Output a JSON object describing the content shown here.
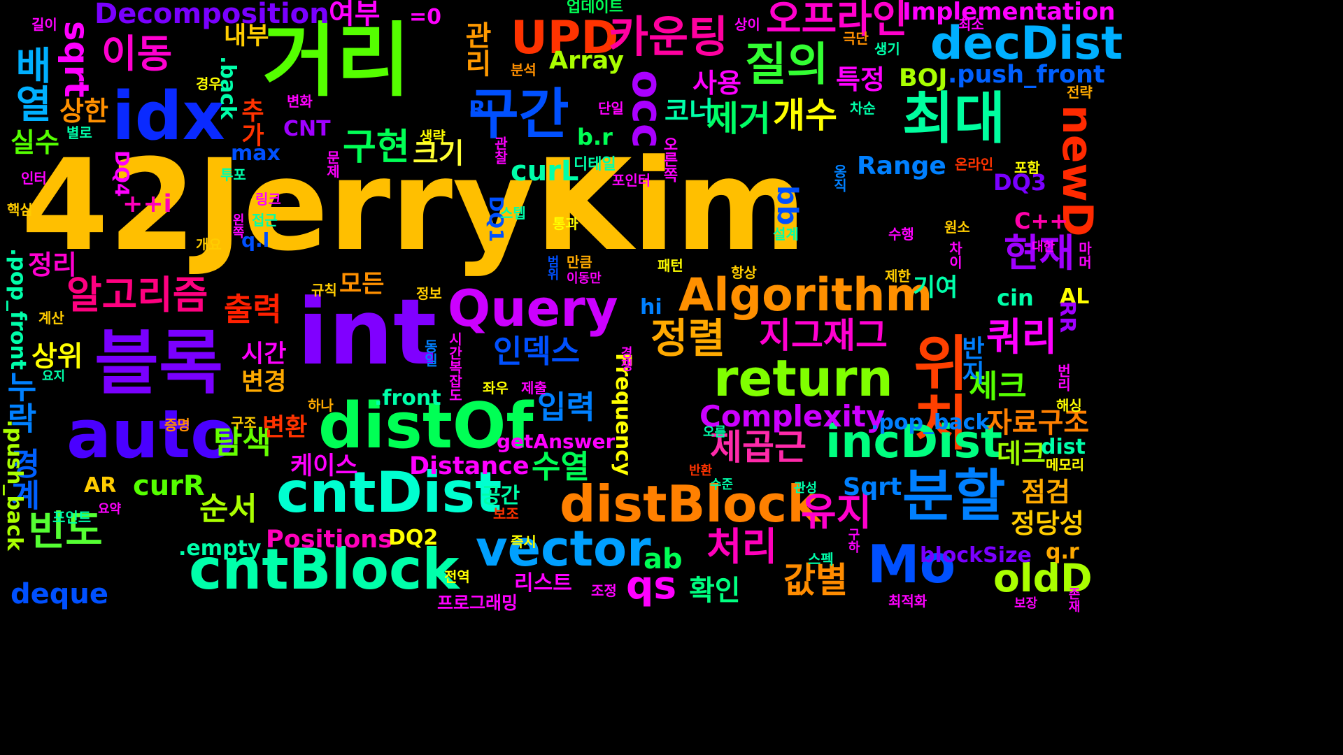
{
  "words": [
    {
      "text": "42JerryKim",
      "color": "#ffbf00"
    },
    {
      "text": "int",
      "color": "#8000ff"
    },
    {
      "text": "거리",
      "color": "#55ff00"
    },
    {
      "text": "블록",
      "color": "#7a00ff"
    },
    {
      "text": "위치",
      "color": "#ff4000"
    },
    {
      "text": "idx",
      "color": "#0a2aff"
    },
    {
      "text": "auto",
      "color": "#4a00ff"
    },
    {
      "text": "distOf",
      "color": "#00ff55"
    },
    {
      "text": "최대",
      "color": "#00ff9f"
    },
    {
      "text": "분할",
      "color": "#0080ff"
    },
    {
      "text": "구간",
      "color": "#0050ff"
    },
    {
      "text": "cntDist",
      "color": "#00ffd0"
    },
    {
      "text": "cntBlock",
      "color": "#00ffaa"
    },
    {
      "text": "vector",
      "color": "#00a0ff"
    },
    {
      "text": "distBlock",
      "color": "#ff8000"
    },
    {
      "text": "Mo",
      "color": "#0050ff"
    },
    {
      "text": "Query",
      "color": "#cc00ff"
    },
    {
      "text": "return",
      "color": "#80ff00"
    },
    {
      "text": "incDist",
      "color": "#00ff80"
    },
    {
      "text": "Algorithm",
      "color": "#ff9000"
    },
    {
      "text": "decDist",
      "color": "#00b0ff"
    },
    {
      "text": "UPD",
      "color": "#ff3300"
    },
    {
      "text": "질의",
      "color": "#33ff33"
    },
    {
      "text": "카운팅",
      "color": "#ff00a0"
    },
    {
      "text": "오프라인",
      "color": "#ff00cc"
    },
    {
      "text": "occ",
      "color": "#aa00ff"
    },
    {
      "text": "newD",
      "color": "#ff2a00"
    },
    {
      "text": "알고리즘",
      "color": "#ff0080"
    },
    {
      "text": "이동",
      "color": "#ff00d0"
    },
    {
      "text": "sqrt",
      "color": "#ff00ff"
    },
    {
      "text": "배열",
      "color": "#00b0ff"
    },
    {
      "text": "정렬",
      "color": "#ffaa00"
    },
    {
      "text": "개수",
      "color": "#ffff00"
    },
    {
      "text": "제거",
      "color": "#00ff66"
    },
    {
      "text": "구현",
      "color": "#00ff55"
    },
    {
      "text": "크기",
      "color": "#ffff33"
    },
    {
      "text": "쿼리",
      "color": "#ff00ff"
    },
    {
      "text": "현재",
      "color": "#a000ff"
    },
    {
      "text": "지그재그",
      "color": "#ff00d0"
    },
    {
      "text": "출력",
      "color": "#ff2000"
    },
    {
      "text": "인덱스",
      "color": "#0050ff"
    },
    {
      "text": "입력",
      "color": "#0080ff"
    },
    {
      "text": "처리",
      "color": "#ff00bb"
    },
    {
      "text": "유지",
      "color": "#ff00cc"
    },
    {
      "text": "값별",
      "color": "#ff8c00"
    },
    {
      "text": "oldD",
      "color": "#aaff00"
    },
    {
      "text": "qs",
      "color": "#ff00ff"
    },
    {
      "text": "ab",
      "color": "#00ff55"
    },
    {
      "text": "확인",
      "color": "#00ff80"
    },
    {
      "text": "체크",
      "color": "#55ff00"
    },
    {
      "text": "제곱근",
      "color": "#ff2aaa"
    },
    {
      "text": "Complexity",
      "color": "#cc00ff"
    },
    {
      "text": "자료구조",
      "color": "#ff8000"
    },
    {
      "text": "데크",
      "color": "#a0ff00"
    },
    {
      "text": "점검",
      "color": "#ffaa00"
    },
    {
      "text": "정당성",
      "color": "#ffcc00"
    },
    {
      "text": "수열",
      "color": "#00ff55"
    },
    {
      "text": "탐색",
      "color": "#66ff00"
    },
    {
      "text": "순서",
      "color": "#aaff00"
    },
    {
      "text": "빈도",
      "color": "#55ff33"
    },
    {
      "text": "경계",
      "color": "#0060ff"
    },
    {
      "text": "누락",
      "color": "#0080ff"
    },
    {
      "text": "정리",
      "color": "#ff00d0"
    },
    {
      "text": "상위",
      "color": "#ffff00"
    },
    {
      "text": "실수",
      "color": "#55ff00"
    },
    {
      "text": "상한",
      "color": "#ff9000"
    },
    {
      "text": "Decomposition",
      "color": "#7a00ff"
    },
    {
      "text": "여부",
      "color": "#ff00ff"
    },
    {
      "text": "=0",
      "color": "#ff00ff"
    },
    {
      "text": "Implementation",
      "color": "#ff00ff"
    },
    {
      "text": "관리",
      "color": "#ff9900"
    },
    {
      "text": "특정",
      "color": "#ff00ff"
    },
    {
      "text": "BOJ",
      "color": "#aaff00"
    },
    {
      "text": ".push_front",
      "color": "#0060ff"
    },
    {
      "text": "사용",
      "color": "#ff00ff"
    },
    {
      "text": "코너",
      "color": "#00ffaa"
    },
    {
      "text": "RL",
      "color": "#0050ff"
    },
    {
      "text": "curL",
      "color": "#00ffaa"
    },
    {
      "text": "Range",
      "color": "#0080ff"
    },
    {
      "text": "DQ3",
      "color": "#7a00ff"
    },
    {
      "text": "bb",
      "color": "#0050ff"
    },
    {
      "text": "C++",
      "color": "#ff00aa"
    },
    {
      "text": "AL",
      "color": "#ffff00"
    },
    {
      "text": "RR",
      "color": "#a000ff"
    },
    {
      "text": "cin",
      "color": "#00ffaa"
    },
    {
      "text": "기여",
      "color": "#00ffaa"
    },
    {
      "text": "반지",
      "color": "#0080ff"
    },
    {
      "text": "b.r",
      "color": "#00ff55"
    },
    {
      "text": "Array",
      "color": "#aaff00"
    },
    {
      "text": "내부",
      "color": "#ffcc00"
    },
    {
      "text": "max",
      "color": "#0050ff"
    },
    {
      "text": "CNT",
      "color": "#a000ff"
    },
    {
      "text": "추가",
      "color": "#ff3300"
    },
    {
      "text": ".back",
      "color": "#00ffaa"
    },
    {
      "text": "DQ4",
      "color": "#ff00ff"
    },
    {
      "text": "++i",
      "color": "#ff00bb"
    },
    {
      "text": "q.l",
      "color": "#0050ff"
    },
    {
      "text": ".pop_front",
      "color": "#00ffaa"
    },
    {
      "text": ".pop_back",
      "color": "#0080ff"
    },
    {
      "text": "모든",
      "color": "#ff9000"
    },
    {
      "text": "시간",
      "color": "#ff00ff"
    },
    {
      "text": "변경",
      "color": "#ffaa00"
    },
    {
      "text": "변환",
      "color": "#ff3300"
    },
    {
      "text": "케이스",
      "color": "#ff00ff"
    },
    {
      "text": "Distance",
      "color": "#ff00ff"
    },
    {
      "text": "Positions",
      "color": "#ff00bb"
    },
    {
      "text": ".front",
      "color": "#00ffaa"
    },
    {
      "text": "getAnswer",
      "color": "#ff00ff"
    },
    {
      "text": "Frequency",
      "color": "#ffff00"
    },
    {
      "text": "Sqrt",
      "color": "#0080ff"
    },
    {
      "text": "dist",
      "color": "#00ffaa"
    },
    {
      "text": "blockSize",
      "color": "#7a00ff"
    },
    {
      "text": "q.r",
      "color": "#ffaa00"
    },
    {
      "text": "hi",
      "color": "#0080ff"
    },
    {
      "text": "AR",
      "color": "#ffcc00"
    },
    {
      "text": "curR",
      "color": "#55ff00"
    },
    {
      "text": "deque",
      "color": "#0050ff"
    },
    {
      "text": ".empty",
      "color": "#00ffaa"
    },
    {
      "text": "DQ2",
      "color": "#ffff00"
    },
    {
      "text": ".push_back",
      "color": "#aaff00"
    },
    {
      "text": "DQ1",
      "color": "#0050ff"
    },
    {
      "text": "공간",
      "color": "#00ffaa"
    },
    {
      "text": "리스트",
      "color": "#ff00ff"
    },
    {
      "text": "프로그래밍",
      "color": "#ff00ff"
    },
    {
      "text": "업데이트",
      "color": "#00ff55"
    },
    {
      "text": "길이",
      "color": "#ff00ff"
    },
    {
      "text": "상이",
      "color": "#ff00ff"
    },
    {
      "text": "최소",
      "color": "#ff00ff"
    },
    {
      "text": "극단",
      "color": "#ff9000"
    },
    {
      "text": "생기",
      "color": "#00ffaa"
    },
    {
      "text": "분석",
      "color": "#ff9000"
    },
    {
      "text": "경우",
      "color": "#ffff00"
    },
    {
      "text": "변화",
      "color": "#ff00ff"
    },
    {
      "text": "단일",
      "color": "#ff00ff"
    },
    {
      "text": "차순",
      "color": "#00ffaa"
    },
    {
      "text": "전략",
      "color": "#ffaa00"
    },
    {
      "text": "별로",
      "color": "#00ffaa"
    },
    {
      "text": "생략",
      "color": "#ffff00"
    },
    {
      "text": "관찰",
      "color": "#ff00ff"
    },
    {
      "text": "오른쪽",
      "color": "#ff00ff"
    },
    {
      "text": "인터",
      "color": "#ff00ff"
    },
    {
      "text": "투포",
      "color": "#00ffaa"
    },
    {
      "text": "문제",
      "color": "#ff00ff"
    },
    {
      "text": "디테일",
      "color": "#00ffaa"
    },
    {
      "text": "포인터",
      "color": "#ff00ff"
    },
    {
      "text": "온라인",
      "color": "#ff3300"
    },
    {
      "text": "포함",
      "color": "#ffff00"
    },
    {
      "text": "옹직",
      "color": "#0080ff"
    },
    {
      "text": "핵심",
      "color": "#ffcc00"
    },
    {
      "text": "링크",
      "color": "#ff00ff"
    },
    {
      "text": "스텝",
      "color": "#00ffaa"
    },
    {
      "text": "왼쪽",
      "color": "#ff00ff"
    },
    {
      "text": "접근",
      "color": "#00ffaa"
    },
    {
      "text": "통과",
      "color": "#ffff00"
    },
    {
      "text": "원소",
      "color": "#ffcc00"
    },
    {
      "text": "개요",
      "color": "#ffcc00"
    },
    {
      "text": "수행",
      "color": "#ff00ff"
    },
    {
      "text": "설계",
      "color": "#00ffaa"
    },
    {
      "text": "대한",
      "color": "#ff00ff"
    },
    {
      "text": "범위",
      "color": "#0050ff"
    },
    {
      "text": "만큼",
      "color": "#ffaa00"
    },
    {
      "text": "패턴",
      "color": "#ffff00"
    },
    {
      "text": "차이",
      "color": "#ff00ff"
    },
    {
      "text": "이동만",
      "color": "#ff00ff"
    },
    {
      "text": "마머",
      "color": "#ff00ff"
    },
    {
      "text": "규칙",
      "color": "#ffcc00"
    },
    {
      "text": "항상",
      "color": "#ffcc00"
    },
    {
      "text": "제한",
      "color": "#ffcc00"
    },
    {
      "text": "정보",
      "color": "#ffcc00"
    },
    {
      "text": "계산",
      "color": "#ffcc00"
    },
    {
      "text": "경쟁",
      "color": "#ff00ff"
    },
    {
      "text": "동일",
      "color": "#0080ff"
    },
    {
      "text": "시간복잡도",
      "color": "#ff00ff"
    },
    {
      "text": "번리",
      "color": "#ff00ff"
    },
    {
      "text": "요지",
      "color": "#00ffaa"
    },
    {
      "text": "좌우",
      "color": "#ffff00"
    },
    {
      "text": "제출",
      "color": "#ff00ff"
    },
    {
      "text": "하나",
      "color": "#ffaa00"
    },
    {
      "text": "해싱",
      "color": "#ffff00"
    },
    {
      "text": "구조",
      "color": "#ffcc00"
    },
    {
      "text": "증명",
      "color": "#ff9000"
    },
    {
      "text": "오름",
      "color": "#00ffaa"
    },
    {
      "text": "메모리",
      "color": "#ffff00"
    },
    {
      "text": "반환",
      "color": "#ff3300"
    },
    {
      "text": "수준",
      "color": "#00ffaa"
    },
    {
      "text": "관성",
      "color": "#00ffaa"
    },
    {
      "text": "포인트",
      "color": "#00ffaa"
    },
    {
      "text": "요약",
      "color": "#ff00ff"
    },
    {
      "text": "보조",
      "color": "#ff3300"
    },
    {
      "text": "구하",
      "color": "#ff00ff"
    },
    {
      "text": "즉시",
      "color": "#ffff00"
    },
    {
      "text": "스펙",
      "color": "#00ffaa"
    },
    {
      "text": "전역",
      "color": "#ffff00"
    },
    {
      "text": "조정",
      "color": "#ff00ff"
    },
    {
      "text": "최적화",
      "color": "#ff00ff"
    },
    {
      "text": "보장",
      "color": "#ff00ff"
    },
    {
      "text": "존재",
      "color": "#ff00ff"
    }
  ]
}
